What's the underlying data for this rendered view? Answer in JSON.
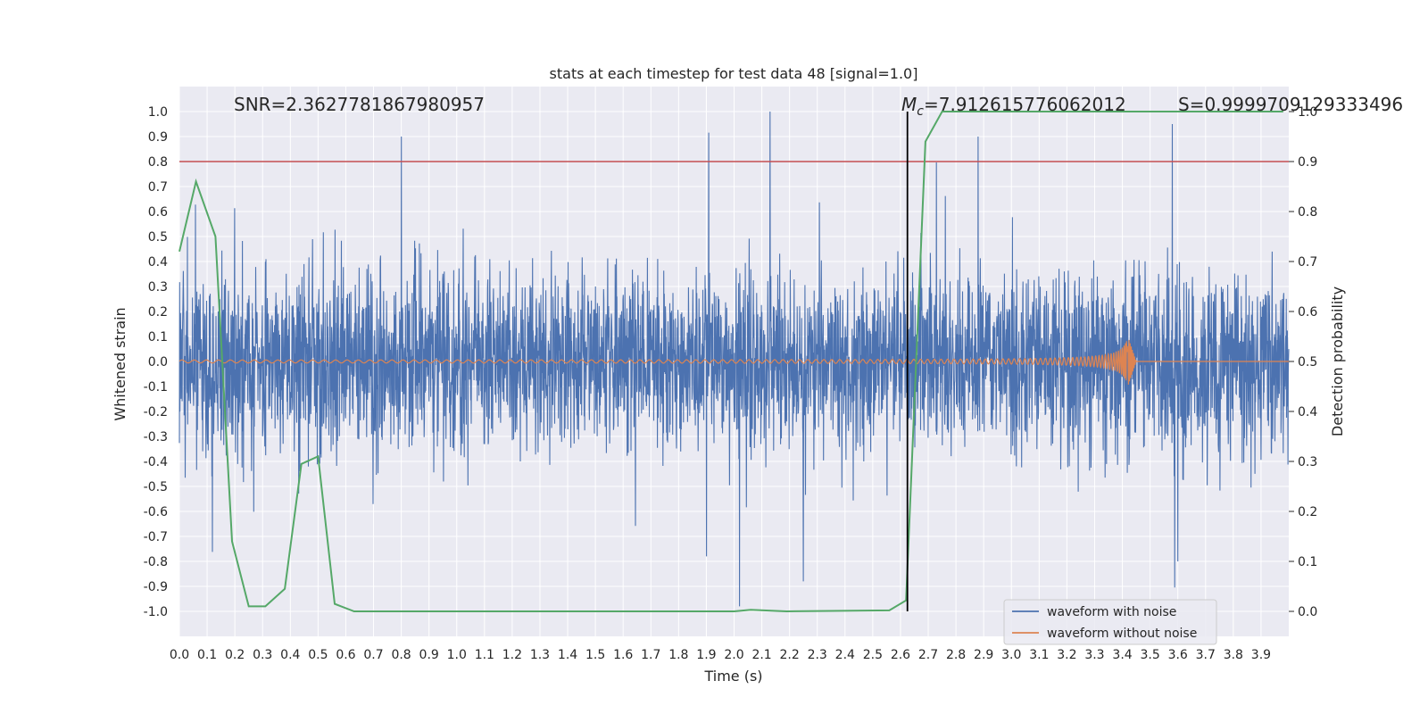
{
  "chart_data": {
    "type": "line",
    "title": "stats at each timestep for test data 48 [signal=1.0]",
    "xlabel": "Time (s)",
    "ylabel": "Whitened strain",
    "y2label": "Detection probability",
    "xlim": [
      0.0,
      4.0
    ],
    "ylim": [
      -1.1,
      1.1
    ],
    "y2lim": [
      -0.05,
      1.05
    ],
    "x_ticks": [
      "0.0",
      "0.1",
      "0.2",
      "0.3",
      "0.4",
      "0.5",
      "0.6",
      "0.7",
      "0.8",
      "0.9",
      "1.0",
      "1.1",
      "1.2",
      "1.3",
      "1.4",
      "1.5",
      "1.6",
      "1.7",
      "1.8",
      "1.9",
      "2.0",
      "2.1",
      "2.2",
      "2.3",
      "2.4",
      "2.5",
      "2.6",
      "2.7",
      "2.8",
      "2.9",
      "3.0",
      "3.1",
      "3.2",
      "3.3",
      "3.4",
      "3.5",
      "3.6",
      "3.7",
      "3.8",
      "3.9"
    ],
    "y_ticks": [
      "1.0",
      "0.9",
      "0.8",
      "0.7",
      "0.6",
      "0.5",
      "0.4",
      "0.3",
      "0.2",
      "0.1",
      "0.0",
      "-0.1",
      "-0.2",
      "-0.3",
      "-0.4",
      "-0.5",
      "-0.6",
      "-0.7",
      "-0.8",
      "-0.9",
      "-1.0"
    ],
    "y2_ticks": [
      "1.0",
      "0.9",
      "0.8",
      "0.7",
      "0.6",
      "0.5",
      "0.4",
      "0.3",
      "0.2",
      "0.1",
      "0.0"
    ],
    "grid": true,
    "legend_position": "bottom-right",
    "annotations": {
      "snr": "SNR=2.3627781867980957",
      "mc_symbol": "M",
      "mc_subscript": "c",
      "mc_value": "=7.912615776062012",
      "s": "S=0.9999709129333496"
    },
    "threshold": {
      "value": 0.9,
      "axis": "y2",
      "color": "#c44e52"
    },
    "marker_time": 2.625,
    "series": [
      {
        "name": "waveform with noise",
        "color": "#4c72b0",
        "kind": "noise",
        "amplitude": 0.35,
        "spikes": [
          [
            0.8,
            0.9
          ],
          [
            2.13,
            1.0
          ],
          [
            2.88,
            0.9
          ],
          [
            3.58,
            0.95
          ],
          [
            2.02,
            -0.98
          ],
          [
            3.6,
            -0.8
          ],
          [
            1.9,
            -0.78
          ],
          [
            2.25,
            -0.88
          ]
        ]
      },
      {
        "name": "waveform without noise",
        "color": "#dd8452",
        "kind": "chirp",
        "amplitude_start": 0.005,
        "amplitude_end": 0.1,
        "t_merge": 3.42
      },
      {
        "name": "",
        "color": "#55a868",
        "axis": "y2",
        "x": [
          0.0,
          0.06,
          0.13,
          0.19,
          0.25,
          0.31,
          0.38,
          0.44,
          0.5,
          0.56,
          0.63,
          0.69,
          0.75,
          0.81,
          0.88,
          0.94,
          1.0,
          1.5,
          2.0,
          2.06,
          2.19,
          2.56,
          2.62,
          2.69,
          2.75,
          2.81,
          3.0,
          3.5,
          3.98
        ],
        "y": [
          0.72,
          0.86,
          0.75,
          0.14,
          0.01,
          0.01,
          0.045,
          0.295,
          0.31,
          0.015,
          0.0,
          0.0,
          0.0,
          0.0,
          0.0,
          0.0,
          0.0,
          0.0,
          0.0,
          0.003,
          0.0,
          0.002,
          0.022,
          0.94,
          1.0,
          1.0,
          1.0,
          1.0,
          1.0
        ]
      }
    ]
  }
}
